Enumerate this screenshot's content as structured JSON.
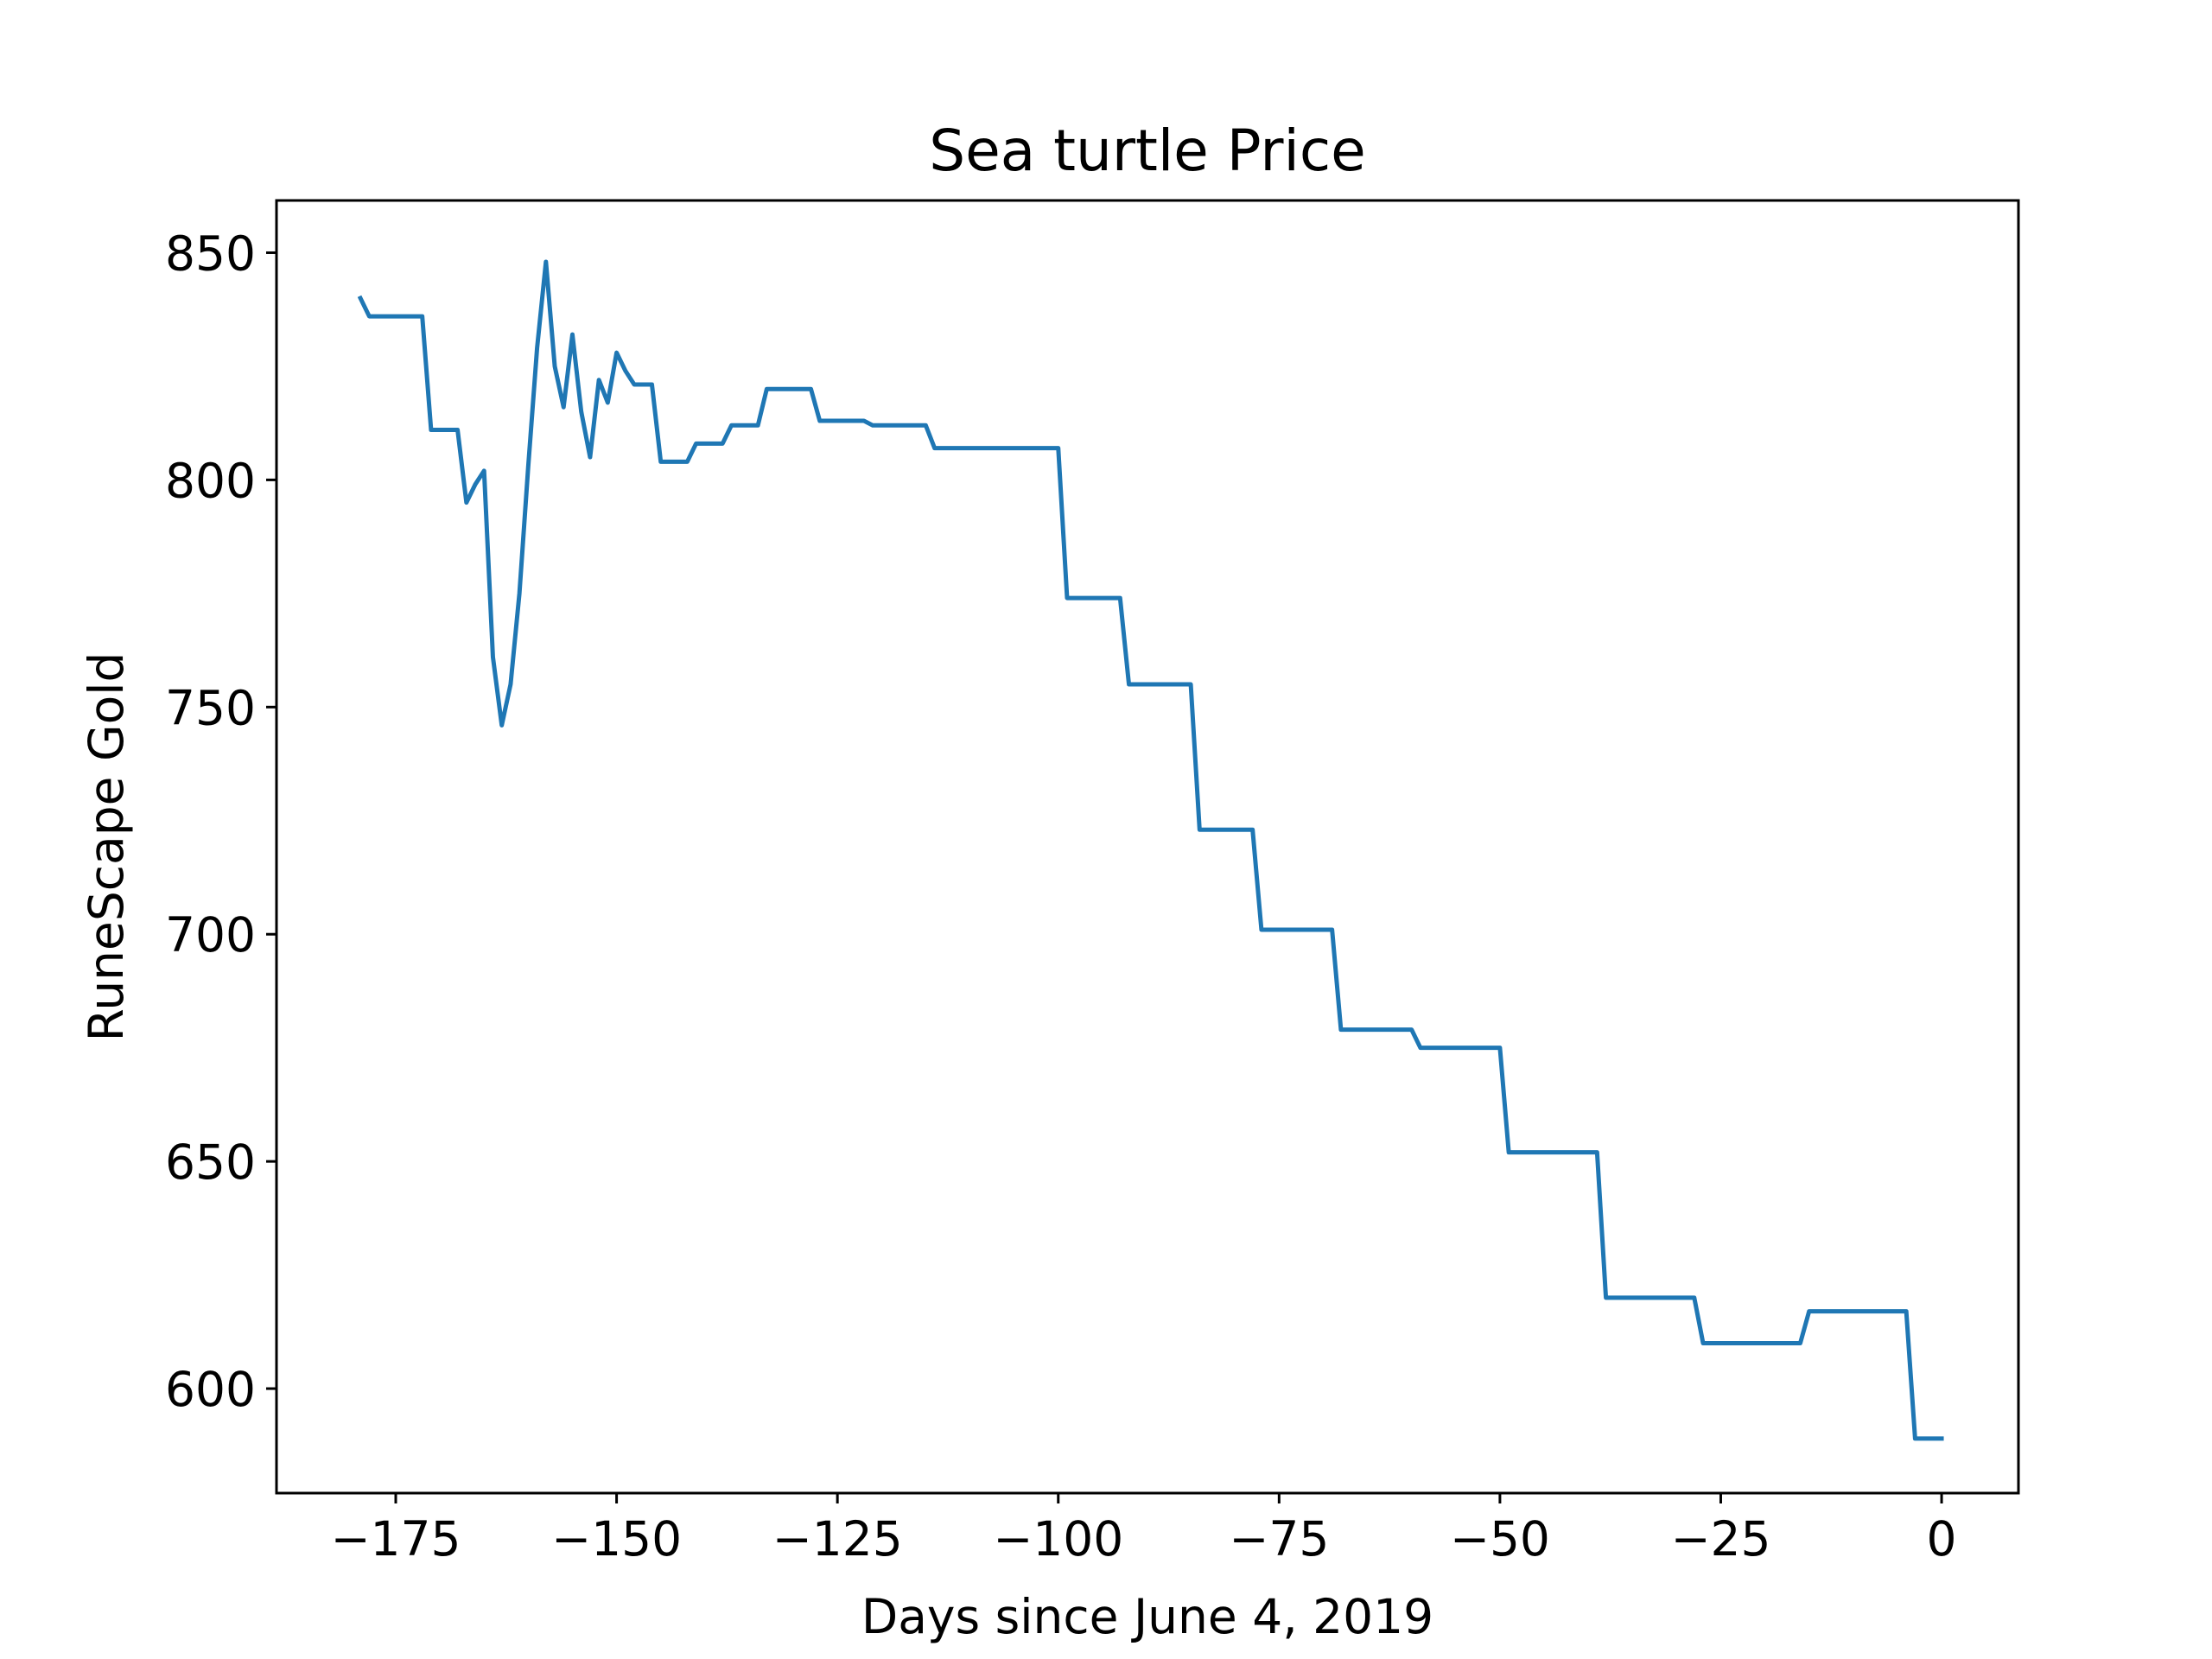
{
  "chart_data": {
    "type": "line",
    "title": "Sea turtle Price",
    "xlabel": "Days since June 4, 2019",
    "ylabel": "RuneScape Gold",
    "xlim": [
      -188.5,
      8.7
    ],
    "ylim": [
      577,
      861.5
    ],
    "xticks": [
      -175,
      -150,
      -125,
      -100,
      -75,
      -50,
      -25,
      0
    ],
    "xtick_labels": [
      "−175",
      "−150",
      "−125",
      "−100",
      "−75",
      "−50",
      "−25",
      "0"
    ],
    "yticks": [
      600,
      650,
      700,
      750,
      800,
      850
    ],
    "ytick_labels": [
      "600",
      "650",
      "700",
      "750",
      "800",
      "850"
    ],
    "grid": false,
    "legend": "none",
    "series": [
      {
        "color": "#1f77b4",
        "x": [
          -179,
          -178,
          -177,
          -172,
          -171,
          -168,
          -167,
          -166,
          -165,
          -164,
          -163,
          -162,
          -161,
          -160,
          -159,
          -158,
          -157,
          -156,
          -155,
          -154,
          -153,
          -152,
          -151,
          -150,
          -149,
          -148,
          -146,
          -145,
          -142,
          -141,
          -138,
          -137,
          -134,
          -133,
          -128,
          -127,
          -122,
          -121,
          -115,
          -114,
          -100,
          -99,
          -93,
          -92,
          -85,
          -84,
          -78,
          -77,
          -69,
          -68,
          -60,
          -59,
          -50,
          -49,
          -39,
          -38,
          -28,
          -27,
          -16,
          -15,
          -4,
          -3,
          0
        ],
        "y": [
          840,
          836,
          836,
          836,
          811,
          811,
          795,
          799,
          802,
          761,
          746,
          755,
          775,
          803,
          829,
          848,
          825,
          816,
          832,
          815,
          805,
          822,
          817,
          828,
          824,
          821,
          821,
          804,
          804,
          808,
          808,
          812,
          812,
          820,
          820,
          813,
          813,
          812,
          812,
          807,
          807,
          774,
          774,
          755,
          755,
          723,
          723,
          701,
          701,
          679,
          679,
          675,
          675,
          652,
          652,
          620,
          620,
          610,
          610,
          617,
          617,
          589,
          589
        ]
      }
    ]
  }
}
